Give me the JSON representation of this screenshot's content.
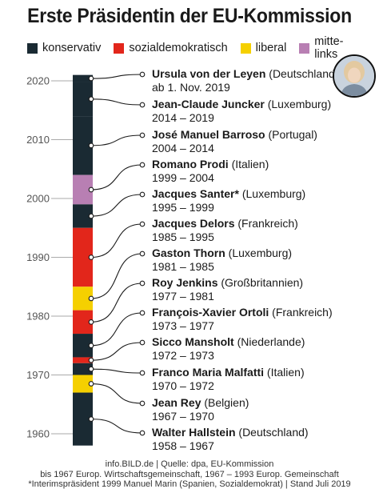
{
  "title": "Erste Präsidentin der EU-Kommission",
  "legend": [
    {
      "label": "konservativ",
      "color": "#1a2a33"
    },
    {
      "label": "sozialdemokratisch",
      "color": "#e2261b"
    },
    {
      "label": "liberal",
      "color": "#f5d000"
    },
    {
      "label": "mitte-links",
      "color": "#b87fb3"
    }
  ],
  "axis": {
    "ticks": [
      "2020",
      "2010",
      "2000",
      "1990",
      "1980",
      "1970",
      "1960"
    ],
    "tick_years": [
      2020,
      2010,
      2000,
      1990,
      1980,
      1970,
      1960
    ],
    "range": [
      1958,
      2021
    ]
  },
  "presidents": [
    {
      "name": "Ursula von der Leyen",
      "country": "(Deutschland)",
      "term": "ab 1. Nov. 2019",
      "start": 2019.8,
      "end": 2021,
      "party": "konservativ"
    },
    {
      "name": "Jean-Claude Juncker",
      "country": "(Luxemburg)",
      "term": "2014 – 2019",
      "start": 2014,
      "end": 2019.8,
      "party": "konservativ"
    },
    {
      "name": "José Manuel Barroso",
      "country": "(Portugal)",
      "term": "2004 – 2014",
      "start": 2004,
      "end": 2014,
      "party": "konservativ"
    },
    {
      "name": "Romano Prodi",
      "country": "(Italien)",
      "term": "1999 – 2004",
      "start": 1999,
      "end": 2004,
      "party": "mitte-links"
    },
    {
      "name": "Jacques Santer*",
      "country": "(Luxemburg)",
      "term": "1995 – 1999",
      "start": 1995,
      "end": 1999,
      "party": "konservativ"
    },
    {
      "name": "Jacques Delors",
      "country": "(Frankreich)",
      "term": "1985 – 1995",
      "start": 1985,
      "end": 1995,
      "party": "sozialdemokratisch"
    },
    {
      "name": "Gaston Thorn",
      "country": "(Luxemburg)",
      "term": "1981 – 1985",
      "start": 1981,
      "end": 1985,
      "party": "liberal"
    },
    {
      "name": "Roy Jenkins",
      "country": "(Großbritannien)",
      "term": "1977 – 1981",
      "start": 1977,
      "end": 1981,
      "party": "sozialdemokratisch"
    },
    {
      "name": "François-Xavier Ortoli",
      "country": "(Frankreich)",
      "term": "1973 – 1977",
      "start": 1973,
      "end": 1977,
      "party": "konservativ"
    },
    {
      "name": "Sicco Mansholt",
      "country": "(Niederlande)",
      "term": "1972 – 1973",
      "start": 1972,
      "end": 1973,
      "party": "sozialdemokratisch"
    },
    {
      "name": "Franco Maria Malfatti",
      "country": "(Italien)",
      "term": "1970 – 1972",
      "start": 1970,
      "end": 1972,
      "party": "konservativ"
    },
    {
      "name": "Jean Rey",
      "country": "(Belgien)",
      "term": "1967 – 1970",
      "start": 1967,
      "end": 1970,
      "party": "liberal"
    },
    {
      "name": "Walter Hallstein",
      "country": "(Deutschland)",
      "term": "1958 – 1967",
      "start": 1958,
      "end": 1967,
      "party": "konservativ"
    }
  ],
  "footer": {
    "line1": "info.BILD.de | Quelle: dpa, EU-Kommission",
    "line2": "bis 1967 Europ. Wirtschaftsgemeinschaft, 1967 – 1993 Europ. Gemeinschaft",
    "line3": "*Interimspräsident 1999 Manuel Marin (Spanien, Sozialdemokrat) | Stand Juli 2019"
  }
}
